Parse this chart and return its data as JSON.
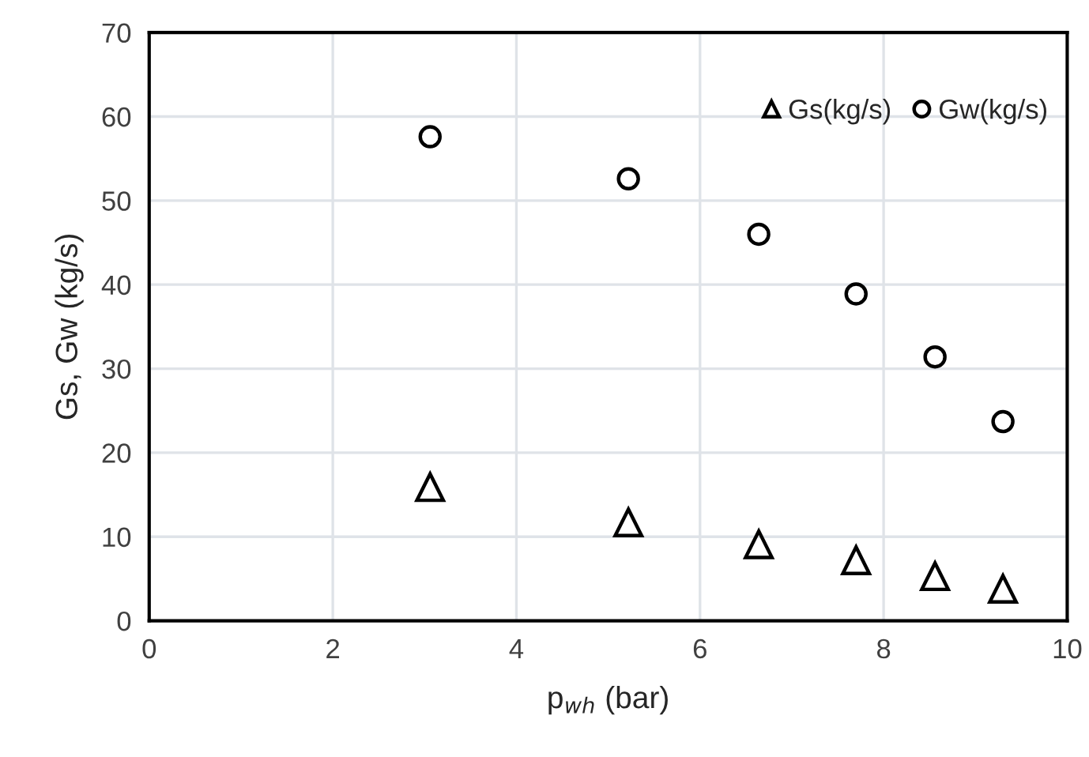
{
  "chart_data": {
    "type": "scatter",
    "xlabel": "p$_{wh}$ (bar)",
    "ylabel": "Gs, Gw (kg/s)",
    "x": [
      3.06,
      5.22,
      6.64,
      7.7,
      8.56,
      9.3
    ],
    "series": [
      {
        "name": "Gs(kg/s)",
        "color": "#000000",
        "marker": "triangle",
        "values": [
          15.9,
          11.7,
          9.1,
          7.2,
          5.3,
          3.8
        ]
      },
      {
        "name": "Gw(kg/s)",
        "color": "#000000",
        "marker": "circle",
        "values": [
          57.6,
          52.6,
          46.0,
          38.9,
          31.4,
          23.7
        ]
      }
    ],
    "xlim": [
      0,
      10
    ],
    "xticks": [
      0,
      2,
      4,
      6,
      8,
      10
    ],
    "ylim": [
      0,
      70
    ],
    "yticks": [
      0,
      10,
      20,
      30,
      40,
      50,
      60,
      70
    ],
    "grid": true,
    "legend": "top right"
  }
}
